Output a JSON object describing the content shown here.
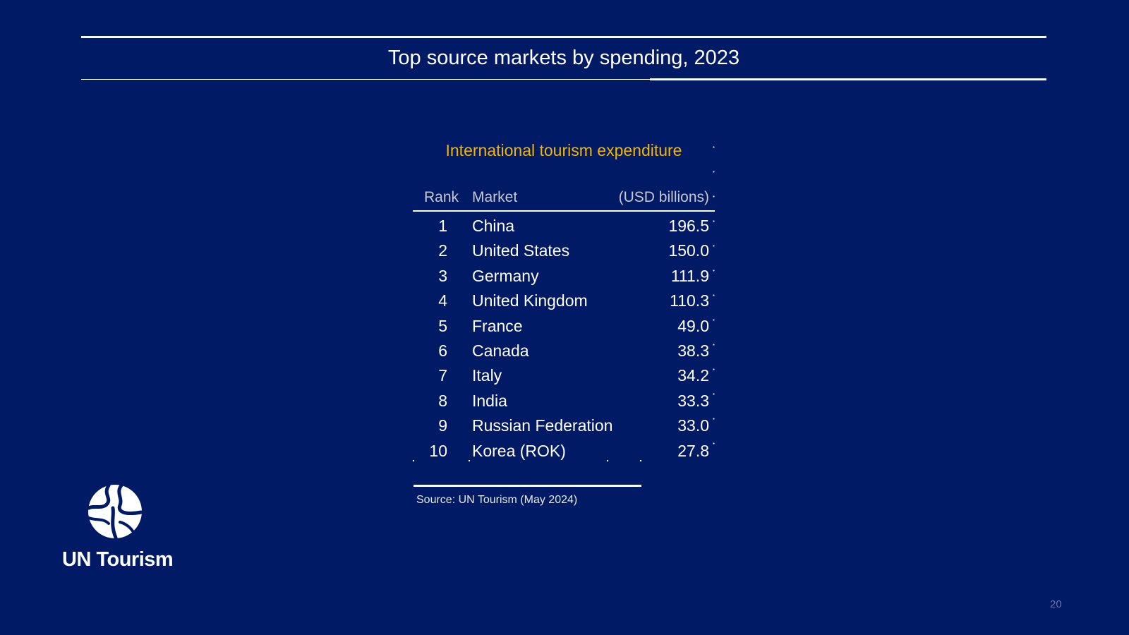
{
  "slide": {
    "title": "Top source markets by spending, 2023",
    "page_number": "20"
  },
  "table": {
    "caption": "International tourism expenditure",
    "headers": {
      "rank": "Rank",
      "market": "Market",
      "value": "(USD billions)"
    },
    "rows": [
      {
        "rank": "1",
        "market": "China",
        "value": "196.5"
      },
      {
        "rank": "2",
        "market": "United States",
        "value": "150.0"
      },
      {
        "rank": "3",
        "market": "Germany",
        "value": "111.9"
      },
      {
        "rank": "4",
        "market": "United Kingdom",
        "value": "110.3"
      },
      {
        "rank": "5",
        "market": "France",
        "value": "49.0"
      },
      {
        "rank": "6",
        "market": "Canada",
        "value": "38.3"
      },
      {
        "rank": "7",
        "market": "Italy",
        "value": "34.2"
      },
      {
        "rank": "8",
        "market": "India",
        "value": "33.3"
      },
      {
        "rank": "9",
        "market": "Russian Federation",
        "value": "33.0"
      },
      {
        "rank": "10",
        "market": "Korea (ROK)",
        "value": "27.8"
      }
    ],
    "source": "Source: UN Tourism (May 2024)"
  },
  "logo": {
    "text": "UN Tourism",
    "icon": "un-tourism-globe-icon"
  },
  "colors": {
    "background": "#001a66",
    "caption": "#f2b500",
    "text": "#ffffff",
    "header_text": "#c8c8c8"
  }
}
